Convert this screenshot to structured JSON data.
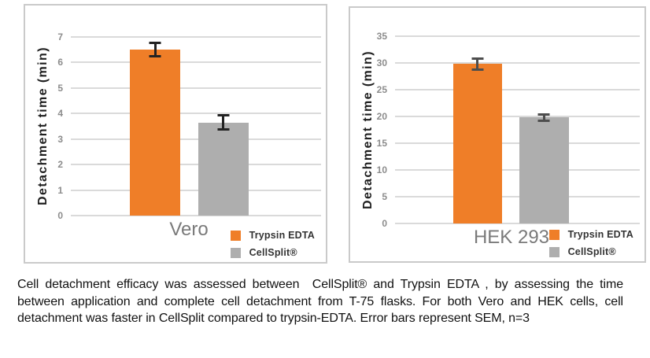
{
  "figure": {
    "caption": "Cell detachment efficacy was assessed between  CellSplit® and Trypsin EDTA , by assessing the time between application and complete cell detachment from T-75 flasks. For both Vero and HEK cells, cell detachment was faster in CellSplit compared to trypsin-EDTA. Error bars represent SEM, n=3"
  },
  "colors": {
    "trypsin_orange": "#EF7E28",
    "cellsplit_gray": "#AEAEAE",
    "gridline": "#DADADA",
    "tick_text": "#8C8C8C",
    "category_text": "#7A7A7A",
    "axis_label_text": "#1E1E1E",
    "legend_text": "#333333",
    "panel_border": "#CACACA",
    "error_bar_left": "#222222",
    "error_bar_right": "#4D4D4D",
    "caption_text": "#111111"
  },
  "chart_data": [
    {
      "type": "bar",
      "title": "",
      "categories": [
        "Vero"
      ],
      "series": [
        {
          "name": "Trypsin EDTA",
          "values": [
            6.5
          ],
          "errors": [
            0.3
          ],
          "color": "#EF7E28"
        },
        {
          "name": "CellSplit®",
          "values": [
            3.65
          ],
          "errors": [
            0.33
          ],
          "color": "#AEAEAE"
        }
      ],
      "ylabel": "Detachment time (min)",
      "ylim": [
        0,
        7
      ],
      "yticks": [
        0,
        1,
        2,
        3,
        4,
        5,
        6,
        7
      ],
      "grid": true,
      "legend_position": "bottom-right",
      "error_bar_color": "#222222",
      "error_bars": "SEM, n=3"
    },
    {
      "type": "bar",
      "title": "",
      "categories": [
        "HEK 293"
      ],
      "series": [
        {
          "name": "Trypsin EDTA",
          "values": [
            29.8
          ],
          "errors": [
            1.3
          ],
          "color": "#EF7E28"
        },
        {
          "name": "CellSplit®",
          "values": [
            19.8
          ],
          "errors": [
            0.8
          ],
          "color": "#AEAEAE"
        }
      ],
      "ylabel": "Detachment time (min)",
      "ylim": [
        0,
        35
      ],
      "yticks": [
        0,
        5,
        10,
        15,
        20,
        25,
        30,
        35
      ],
      "grid": true,
      "legend_position": "bottom-right",
      "error_bar_color": "#4D4D4D",
      "error_bars": "SEM, n=3"
    }
  ]
}
